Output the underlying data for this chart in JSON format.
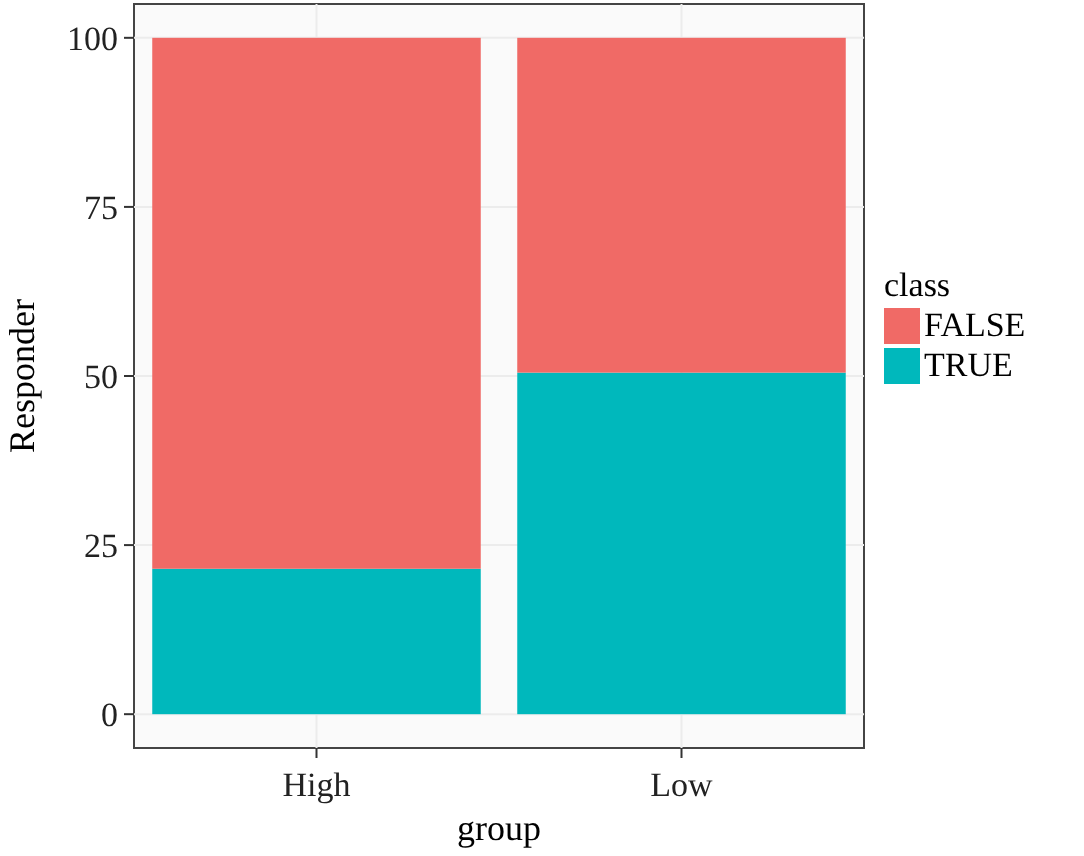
{
  "chart_data": {
    "type": "bar",
    "stacked": true,
    "categories": [
      "High",
      "Low"
    ],
    "xlabel": "group",
    "ylabel": "Responder",
    "legend_title": "class",
    "legend": "right",
    "grid": true,
    "series": [
      {
        "name": "TRUE",
        "color": "#00b8bc",
        "values": [
          21.5,
          50.5
        ]
      },
      {
        "name": "FALSE",
        "color": "#f06a66",
        "values": [
          78.5,
          49.5
        ]
      }
    ],
    "ylim": [
      -5,
      105
    ],
    "yticks": [
      0,
      25,
      50,
      75,
      100
    ]
  }
}
